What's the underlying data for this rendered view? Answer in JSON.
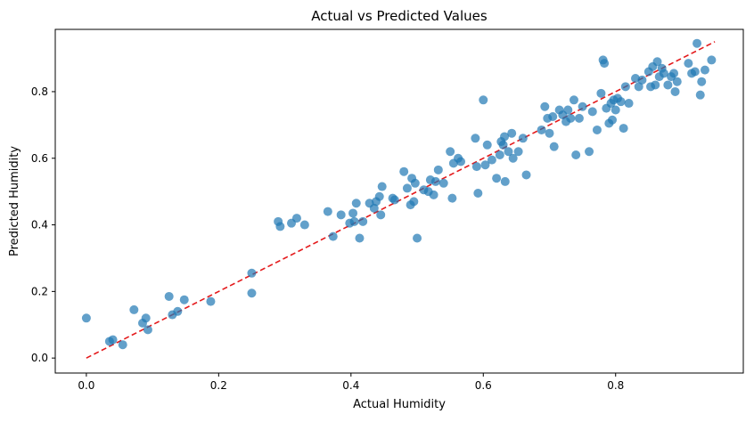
{
  "chart_data": {
    "type": "scatter",
    "title": "Actual vs Predicted Values",
    "xlabel": "Actual Humidity",
    "ylabel": "Predicted Humidity",
    "xlim": [
      -0.047,
      0.993
    ],
    "ylim": [
      -0.045,
      0.987
    ],
    "x_ticks": [
      0.0,
      0.2,
      0.4,
      0.6,
      0.8
    ],
    "y_ticks": [
      0.0,
      0.2,
      0.4,
      0.6,
      0.8
    ],
    "x_tick_labels": [
      "0.0",
      "0.2",
      "0.4",
      "0.6",
      "0.8"
    ],
    "y_tick_labels": [
      "0.0",
      "0.2",
      "0.4",
      "0.6",
      "0.8"
    ],
    "grid": false,
    "legend": "none",
    "point_color": "#1f77b4",
    "point_alpha": 0.7,
    "reference_line": {
      "x": [
        0.0,
        0.95
      ],
      "y": [
        0.0,
        0.95
      ],
      "color": "#e41a1c",
      "style": "dashed"
    },
    "points": [
      [
        0.0,
        0.12
      ],
      [
        0.035,
        0.05
      ],
      [
        0.04,
        0.055
      ],
      [
        0.055,
        0.04
      ],
      [
        0.072,
        0.145
      ],
      [
        0.085,
        0.105
      ],
      [
        0.09,
        0.12
      ],
      [
        0.093,
        0.085
      ],
      [
        0.125,
        0.185
      ],
      [
        0.13,
        0.13
      ],
      [
        0.138,
        0.14
      ],
      [
        0.148,
        0.175
      ],
      [
        0.188,
        0.17
      ],
      [
        0.25,
        0.255
      ],
      [
        0.25,
        0.195
      ],
      [
        0.29,
        0.41
      ],
      [
        0.293,
        0.395
      ],
      [
        0.31,
        0.405
      ],
      [
        0.318,
        0.42
      ],
      [
        0.33,
        0.4
      ],
      [
        0.365,
        0.44
      ],
      [
        0.373,
        0.365
      ],
      [
        0.385,
        0.43
      ],
      [
        0.398,
        0.405
      ],
      [
        0.403,
        0.435
      ],
      [
        0.405,
        0.41
      ],
      [
        0.408,
        0.465
      ],
      [
        0.413,
        0.36
      ],
      [
        0.418,
        0.41
      ],
      [
        0.428,
        0.465
      ],
      [
        0.435,
        0.45
      ],
      [
        0.438,
        0.47
      ],
      [
        0.443,
        0.485
      ],
      [
        0.445,
        0.43
      ],
      [
        0.447,
        0.515
      ],
      [
        0.463,
        0.48
      ],
      [
        0.466,
        0.475
      ],
      [
        0.48,
        0.56
      ],
      [
        0.485,
        0.51
      ],
      [
        0.49,
        0.46
      ],
      [
        0.492,
        0.54
      ],
      [
        0.495,
        0.47
      ],
      [
        0.497,
        0.525
      ],
      [
        0.5,
        0.36
      ],
      [
        0.51,
        0.505
      ],
      [
        0.517,
        0.5
      ],
      [
        0.52,
        0.535
      ],
      [
        0.525,
        0.49
      ],
      [
        0.528,
        0.53
      ],
      [
        0.532,
        0.565
      ],
      [
        0.54,
        0.525
      ],
      [
        0.55,
        0.62
      ],
      [
        0.553,
        0.48
      ],
      [
        0.555,
        0.585
      ],
      [
        0.562,
        0.6
      ],
      [
        0.566,
        0.59
      ],
      [
        0.588,
        0.66
      ],
      [
        0.59,
        0.575
      ],
      [
        0.592,
        0.495
      ],
      [
        0.6,
        0.775
      ],
      [
        0.603,
        0.58
      ],
      [
        0.606,
        0.64
      ],
      [
        0.613,
        0.595
      ],
      [
        0.62,
        0.54
      ],
      [
        0.625,
        0.61
      ],
      [
        0.627,
        0.65
      ],
      [
        0.63,
        0.64
      ],
      [
        0.632,
        0.665
      ],
      [
        0.633,
        0.53
      ],
      [
        0.638,
        0.62
      ],
      [
        0.643,
        0.675
      ],
      [
        0.645,
        0.6
      ],
      [
        0.653,
        0.62
      ],
      [
        0.66,
        0.66
      ],
      [
        0.665,
        0.55
      ],
      [
        0.688,
        0.685
      ],
      [
        0.693,
        0.755
      ],
      [
        0.697,
        0.72
      ],
      [
        0.7,
        0.675
      ],
      [
        0.705,
        0.725
      ],
      [
        0.707,
        0.635
      ],
      [
        0.715,
        0.745
      ],
      [
        0.72,
        0.73
      ],
      [
        0.725,
        0.71
      ],
      [
        0.728,
        0.745
      ],
      [
        0.732,
        0.72
      ],
      [
        0.737,
        0.775
      ],
      [
        0.74,
        0.61
      ],
      [
        0.745,
        0.72
      ],
      [
        0.75,
        0.755
      ],
      [
        0.76,
        0.62
      ],
      [
        0.765,
        0.74
      ],
      [
        0.772,
        0.685
      ],
      [
        0.778,
        0.795
      ],
      [
        0.781,
        0.895
      ],
      [
        0.783,
        0.885
      ],
      [
        0.786,
        0.75
      ],
      [
        0.79,
        0.705
      ],
      [
        0.793,
        0.765
      ],
      [
        0.795,
        0.715
      ],
      [
        0.797,
        0.775
      ],
      [
        0.8,
        0.745
      ],
      [
        0.803,
        0.78
      ],
      [
        0.808,
        0.77
      ],
      [
        0.812,
        0.69
      ],
      [
        0.815,
        0.815
      ],
      [
        0.82,
        0.765
      ],
      [
        0.83,
        0.84
      ],
      [
        0.835,
        0.815
      ],
      [
        0.84,
        0.835
      ],
      [
        0.85,
        0.86
      ],
      [
        0.853,
        0.815
      ],
      [
        0.856,
        0.875
      ],
      [
        0.86,
        0.82
      ],
      [
        0.863,
        0.89
      ],
      [
        0.866,
        0.845
      ],
      [
        0.87,
        0.87
      ],
      [
        0.873,
        0.855
      ],
      [
        0.879,
        0.82
      ],
      [
        0.884,
        0.845
      ],
      [
        0.888,
        0.855
      ],
      [
        0.89,
        0.8
      ],
      [
        0.893,
        0.83
      ],
      [
        0.91,
        0.885
      ],
      [
        0.915,
        0.855
      ],
      [
        0.92,
        0.86
      ],
      [
        0.923,
        0.945
      ],
      [
        0.928,
        0.79
      ],
      [
        0.93,
        0.83
      ],
      [
        0.935,
        0.865
      ],
      [
        0.945,
        0.895
      ]
    ]
  }
}
